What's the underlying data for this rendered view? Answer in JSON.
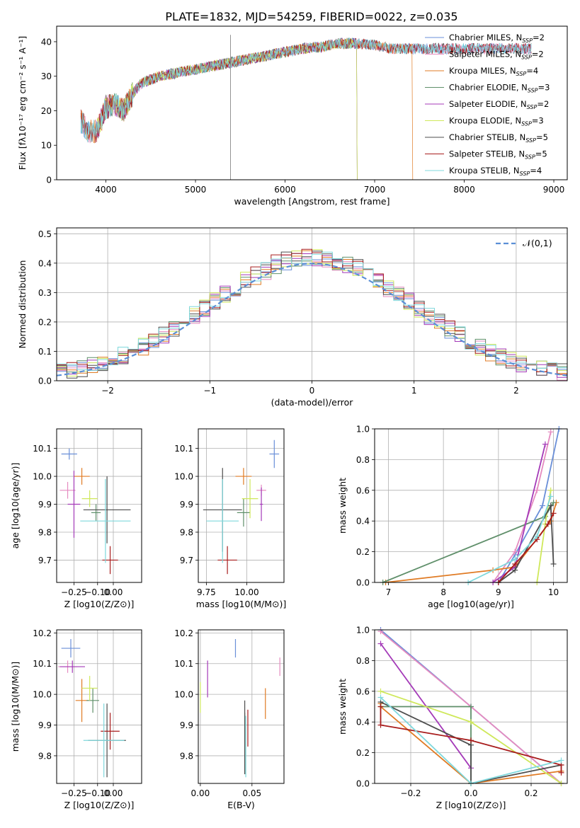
{
  "figure": {
    "title": "PLATE=1832, MJD=54259, FIBERID=0022, z=0.035"
  },
  "colors": {
    "Chabrier MILES": "#6a8fd8",
    "Salpeter MILES": "#e58bc0",
    "Kroupa MILES": "#e07b24",
    "Chabrier ELODIE": "#5f8f6a",
    "Salpeter ELODIE": "#a43ab8",
    "Kroupa ELODIE": "#cfe85a",
    "Chabrier STELIB": "#4d4d4d",
    "Salpeter STELIB": "#a81c1c",
    "Kroupa STELIB": "#7fd8dc"
  },
  "chart_data": [
    {
      "id": "spectrum",
      "type": "line",
      "xlabel": "wavelength [Angstrom, rest frame]",
      "ylabel": "Flux [fλ10⁻¹⁷ erg cm⁻² s⁻¹ A⁻¹]",
      "xlim": [
        3450,
        9150
      ],
      "ylim": [
        0,
        44.5
      ],
      "xticks": [
        4000,
        5000,
        6000,
        7000,
        8000,
        9000
      ],
      "yticks": [
        0,
        10,
        20,
        30,
        40
      ],
      "continuum": {
        "x": [
          3720,
          3800,
          3900,
          4000,
          4100,
          4200,
          4300,
          4400,
          4600,
          4800,
          5000,
          5200,
          5400,
          5600,
          5800,
          6000,
          6200,
          6400,
          6600,
          6800,
          7000,
          7200,
          7400,
          7700,
          8000,
          8300,
          8500,
          8700
        ],
        "y": [
          17,
          14,
          14,
          21,
          22,
          20,
          25,
          28,
          30,
          31,
          32,
          33,
          34,
          35,
          36,
          37,
          38,
          38.5,
          39.5,
          39.5,
          39,
          38,
          38,
          38,
          38,
          38,
          38,
          38
        ]
      },
      "legend": [
        "Chabrier MILES, NSSP=2",
        "Salpeter MILES, NSSP=2",
        "Kroupa MILES, NSSP=4",
        "Chabrier ELODIE, NSSP=3",
        "Salpeter ELODIE, NSSP=2",
        "Kroupa ELODIE, NSSP=3",
        "Chabrier STELIB, NSSP=5",
        "Salpeter STELIB, NSSP=5",
        "Kroupa STELIB, NSSP=4"
      ],
      "legend_placement": "upper right",
      "grid": false
    },
    {
      "id": "residuals",
      "type": "step histogram",
      "xlabel": "(data-model)/error",
      "ylabel": "Normed distribution",
      "xlim": [
        -2.5,
        2.5
      ],
      "ylim": [
        0,
        0.52
      ],
      "xticks": [
        -2,
        -1,
        0,
        1,
        2
      ],
      "yticks": [
        0.0,
        0.1,
        0.2,
        0.3,
        0.4,
        0.5
      ],
      "bin_width": 0.1,
      "gaussian_label": "𝒩(0,1)",
      "legend_placement": "upper right",
      "grid": true
    },
    {
      "id": "age_vs_Z",
      "type": "scatter with error bars",
      "xlabel": "Z [log10(Z/Z⊙)]",
      "ylabel": "age [log10(age/yr)]",
      "xlim": [
        -0.36,
        0.18
      ],
      "ylim": [
        9.62,
        10.17
      ],
      "xticks": [
        -0.25,
        -0.1,
        0.0
      ],
      "xticklabels": [
        "−0.25",
        "−0.10",
        "0.00"
      ],
      "yticks": [
        9.7,
        9.8,
        9.9,
        10.0,
        10.1
      ],
      "points": [
        {
          "model": "Chabrier MILES",
          "x": -0.28,
          "xerr": 0.05,
          "y": 10.08,
          "yerr": 0.02
        },
        {
          "model": "Salpeter MILES",
          "x": -0.29,
          "xerr": 0.05,
          "y": 9.95,
          "yerr": 0.03
        },
        {
          "model": "Kroupa MILES",
          "x": -0.2,
          "xerr": 0.05,
          "y": 10.0,
          "yerr": 0.03
        },
        {
          "model": "Chabrier ELODIE",
          "x": -0.11,
          "xerr": 0.03,
          "y": 9.87,
          "yerr": 0.03
        },
        {
          "model": "Salpeter ELODIE",
          "x": -0.25,
          "xerr": 0.04,
          "y": 9.9,
          "yerr": 0.12
        },
        {
          "model": "Kroupa ELODIE",
          "x": -0.15,
          "xerr": 0.05,
          "y": 9.92,
          "yerr": 0.03
        },
        {
          "model": "Chabrier STELIB",
          "x": -0.04,
          "xerr": 0.15,
          "y": 9.88,
          "yerr": 0.12
        },
        {
          "model": "Salpeter STELIB",
          "x": -0.02,
          "xerr": 0.05,
          "y": 9.7,
          "yerr": 0.05
        },
        {
          "model": "Kroupa STELIB",
          "x": -0.05,
          "xerr": 0.16,
          "y": 9.84,
          "yerr": 0.15
        }
      ]
    },
    {
      "id": "age_vs_mass",
      "type": "scatter with error bars",
      "xlabel": "mass [log10(M/M⊙)]",
      "ylabel": "",
      "xlim": [
        9.7,
        10.23
      ],
      "ylim": [
        9.62,
        10.17
      ],
      "xticks": [
        9.75,
        10.0
      ],
      "xticklabels": [
        "9.75",
        "10.00"
      ],
      "yticks": [
        9.7,
        9.8,
        9.9,
        10.0,
        10.1
      ],
      "points": [
        {
          "model": "Chabrier MILES",
          "x": 10.17,
          "xerr": 0.03,
          "y": 10.08,
          "yerr": 0.05
        },
        {
          "model": "Salpeter MILES",
          "x": 10.09,
          "xerr": 0.03,
          "y": 9.95,
          "yerr": 0.02
        },
        {
          "model": "Kroupa MILES",
          "x": 9.98,
          "xerr": 0.05,
          "y": 10.0,
          "yerr": 0.03
        },
        {
          "model": "Chabrier ELODIE",
          "x": 9.98,
          "xerr": 0.04,
          "y": 9.87,
          "yerr": 0.05
        },
        {
          "model": "Salpeter ELODIE",
          "x": 10.09,
          "xerr": 0.01,
          "y": 9.9,
          "yerr": 0.06
        },
        {
          "model": "Kroupa ELODIE",
          "x": 10.02,
          "xerr": 0.05,
          "y": 9.92,
          "yerr": 0.07
        },
        {
          "model": "Chabrier STELIB",
          "x": 9.85,
          "xerr": 0.12,
          "y": 9.88,
          "yerr": 0.15
        },
        {
          "model": "Salpeter STELIB",
          "x": 9.88,
          "xerr": 0.06,
          "y": 9.7,
          "yerr": 0.05
        },
        {
          "model": "Kroupa STELIB",
          "x": 9.85,
          "xerr": 0.1,
          "y": 9.84,
          "yerr": 0.15
        }
      ]
    },
    {
      "id": "mass_weight_vs_age",
      "type": "line",
      "xlabel": "age [log10(age/yr)]",
      "ylabel": "mass weight",
      "xlim": [
        6.75,
        10.25
      ],
      "ylim": [
        0,
        1
      ],
      "xticks": [
        7,
        8,
        9,
        10
      ],
      "yticks": [
        0.0,
        0.2,
        0.4,
        0.6,
        0.8,
        1.0
      ],
      "grid": true,
      "series": [
        {
          "model": "Chabrier MILES",
          "x": [
            9.0,
            9.3,
            9.8,
            10.1
          ],
          "y": [
            0.0,
            0.18,
            0.5,
            1.0
          ]
        },
        {
          "model": "Salpeter MILES",
          "x": [
            8.9,
            9.3,
            9.7,
            9.95
          ],
          "y": [
            0.0,
            0.2,
            0.6,
            0.98
          ]
        },
        {
          "model": "Kroupa MILES",
          "x": [
            6.95,
            8.9,
            9.3,
            9.95,
            10.05
          ],
          "y": [
            0.0,
            0.08,
            0.1,
            0.4,
            0.52
          ]
        },
        {
          "model": "Chabrier ELODIE",
          "x": [
            6.9,
            9.85,
            10.0
          ],
          "y": [
            0.0,
            0.43,
            0.52
          ]
        },
        {
          "model": "Salpeter ELODIE",
          "x": [
            8.9,
            9.3,
            9.85
          ],
          "y": [
            0.0,
            0.1,
            0.9
          ]
        },
        {
          "model": "Kroupa ELODIE",
          "x": [
            9.7,
            9.85,
            9.95
          ],
          "y": [
            0.0,
            0.38,
            0.6
          ]
        },
        {
          "model": "Chabrier STELIB",
          "x": [
            9.0,
            9.3,
            9.95,
            10.0
          ],
          "y": [
            0.0,
            0.08,
            0.5,
            0.12
          ]
        },
        {
          "model": "Salpeter STELIB",
          "x": [
            9.0,
            9.3,
            9.7,
            9.9,
            10.0
          ],
          "y": [
            0.0,
            0.12,
            0.28,
            0.38,
            0.45
          ]
        },
        {
          "model": "Kroupa STELIB",
          "x": [
            8.45,
            9.3,
            9.7,
            9.95
          ],
          "y": [
            0.0,
            0.15,
            0.3,
            0.56
          ]
        }
      ]
    },
    {
      "id": "mass_vs_Z",
      "type": "scatter with error bars",
      "xlabel": "Z [log10(Z/Z⊙)]",
      "ylabel": "mass [log10(M/M⊙)]",
      "xlim": [
        -0.36,
        0.18
      ],
      "ylim": [
        9.71,
        10.21
      ],
      "xticks": [
        -0.25,
        -0.1,
        0.0
      ],
      "xticklabels": [
        "−0.25",
        "−0.10",
        "0.00"
      ],
      "yticks": [
        9.8,
        9.9,
        10.0,
        10.1,
        10.2
      ],
      "points": [
        {
          "model": "Chabrier MILES",
          "x": -0.27,
          "xerr": 0.06,
          "y": 10.15,
          "yerr": 0.03
        },
        {
          "model": "Salpeter MILES",
          "x": -0.29,
          "xerr": 0.06,
          "y": 10.09,
          "yerr": 0.02
        },
        {
          "model": "Kroupa MILES",
          "x": -0.2,
          "xerr": 0.04,
          "y": 9.98,
          "yerr": 0.07
        },
        {
          "model": "Chabrier ELODIE",
          "x": -0.13,
          "xerr": 0.04,
          "y": 9.98,
          "yerr": 0.04
        },
        {
          "model": "Salpeter ELODIE",
          "x": -0.26,
          "xerr": 0.08,
          "y": 10.09,
          "yerr": 0.02
        },
        {
          "model": "Kroupa ELODIE",
          "x": -0.15,
          "xerr": 0.05,
          "y": 10.02,
          "yerr": 0.04
        },
        {
          "model": "Chabrier STELIB",
          "x": -0.04,
          "xerr": 0.12,
          "y": 9.85,
          "yerr": 0.12
        },
        {
          "model": "Salpeter STELIB",
          "x": -0.02,
          "xerr": 0.06,
          "y": 9.88,
          "yerr": 0.06
        },
        {
          "model": "Kroupa STELIB",
          "x": -0.06,
          "xerr": 0.13,
          "y": 9.85,
          "yerr": 0.12
        }
      ]
    },
    {
      "id": "mass_vs_EBV",
      "type": "scatter with error bars",
      "xlabel": "E(B-V)",
      "ylabel": "",
      "xlim": [
        -0.002,
        0.081
      ],
      "ylim": [
        9.71,
        10.21
      ],
      "xticks": [
        0.0,
        0.05
      ],
      "xticklabels": [
        "0.00",
        "0.05"
      ],
      "yticks": [
        9.8,
        9.9,
        10.0,
        10.1,
        10.2
      ],
      "points": [
        {
          "model": "Chabrier MILES",
          "x": 0.034,
          "xerr": 0,
          "y": 10.15,
          "yerr": 0.03
        },
        {
          "model": "Salpeter MILES",
          "x": 0.077,
          "xerr": 0,
          "y": 10.09,
          "yerr": 0.03
        },
        {
          "model": "Kroupa MILES",
          "x": 0.063,
          "xerr": 0,
          "y": 9.97,
          "yerr": 0.05
        },
        {
          "model": "Chabrier ELODIE",
          "x": 0.043,
          "xerr": 0,
          "y": 9.84,
          "yerr": 0.1
        },
        {
          "model": "Salpeter ELODIE",
          "x": 0.007,
          "xerr": 0,
          "y": 10.05,
          "yerr": 0.06
        },
        {
          "model": "Kroupa ELODIE",
          "x": 0.0,
          "xerr": 0,
          "y": 9.99,
          "yerr": 0.05
        },
        {
          "model": "Chabrier STELIB",
          "x": 0.043,
          "xerr": 0,
          "y": 9.86,
          "yerr": 0.12
        },
        {
          "model": "Salpeter STELIB",
          "x": 0.046,
          "xerr": 0,
          "y": 9.89,
          "yerr": 0.06
        },
        {
          "model": "Kroupa STELIB",
          "x": 0.044,
          "xerr": 0,
          "y": 9.83,
          "yerr": 0.1
        }
      ]
    },
    {
      "id": "mass_weight_vs_Z",
      "type": "line",
      "xlabel": "Z [log10(Z/Z⊙)]",
      "ylabel": "mass weight",
      "xlim": [
        -0.32,
        0.32
      ],
      "ylim": [
        0,
        1
      ],
      "xticks": [
        -0.2,
        0.0,
        0.2
      ],
      "xticklabels": [
        "−0.2",
        "0.0",
        "0.2"
      ],
      "yticks": [
        0.0,
        0.2,
        0.4,
        0.6,
        0.8,
        1.0
      ],
      "grid": true,
      "series": [
        {
          "model": "Chabrier MILES",
          "x": [
            -0.3,
            0.0,
            0.3
          ],
          "y": [
            1.0,
            0.5,
            0.0
          ]
        },
        {
          "model": "Salpeter MILES",
          "x": [
            -0.3,
            0.0,
            0.3
          ],
          "y": [
            0.99,
            0.5,
            0.0
          ]
        },
        {
          "model": "Kroupa MILES",
          "x": [
            -0.3,
            -0.3,
            0.0,
            0.3
          ],
          "y": [
            0.52,
            0.5,
            0.0,
            0.08
          ]
        },
        {
          "model": "Chabrier ELODIE",
          "x": [
            -0.3,
            0.0,
            0.0
          ],
          "y": [
            0.5,
            0.5,
            0.0
          ]
        },
        {
          "model": "Salpeter ELODIE",
          "x": [
            -0.3,
            0.0
          ],
          "y": [
            0.91,
            0.1
          ]
        },
        {
          "model": "Kroupa ELODIE",
          "x": [
            -0.3,
            0.0,
            0.3
          ],
          "y": [
            0.6,
            0.4,
            0.0
          ]
        },
        {
          "model": "Chabrier STELIB",
          "x": [
            -0.3,
            0.0,
            0.0,
            0.3
          ],
          "y": [
            0.53,
            0.25,
            0.0,
            0.12
          ]
        },
        {
          "model": "Salpeter STELIB",
          "x": [
            -0.3,
            -0.3,
            0.0,
            0.3,
            0.3
          ],
          "y": [
            0.5,
            0.38,
            0.28,
            0.12,
            0.07
          ]
        },
        {
          "model": "Kroupa STELIB",
          "x": [
            -0.3,
            0.0,
            0.3
          ],
          "y": [
            0.56,
            0.0,
            0.15
          ]
        }
      ]
    }
  ]
}
